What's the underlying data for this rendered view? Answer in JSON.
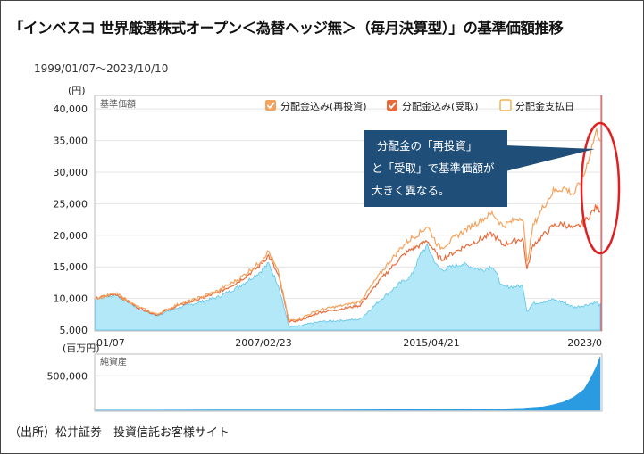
{
  "title": "「インベスコ 世界厳選株式オープン＜為替ヘッジ無＞（毎月決算型）」の基準価額推移",
  "date_range": "1999/01/07〜2023/10/10",
  "source": "（出所）松井証券　投資信託お客様サイト",
  "annotation": {
    "line1": "分配金の「再投資」",
    "line2": "と「受取」で基準価額が",
    "line3": "大きく異なる。"
  },
  "colors": {
    "reinvest": "#f5a25d",
    "received": "#e86a3a",
    "payout_day": "#f2b34a",
    "nav_fill": "#b3e8f9",
    "nav_line": "#5dc5ea",
    "assets_fill": "#2a9be0",
    "callout_bg": "#1f4e79",
    "highlight": "#e02020"
  },
  "chart_data": [
    {
      "type": "line",
      "title": "基準価額",
      "y_unit": "(円)",
      "ylim": [
        5000,
        42000
      ],
      "yticks": [
        "5,000",
        "10,000",
        "15,000",
        "20,000",
        "25,000",
        "30,000",
        "35,000",
        "40,000"
      ],
      "xticks": [
        "01/07",
        "2007/02/23",
        "2015/04/21",
        "2023/0"
      ],
      "legend": [
        {
          "label": "分配金込み(再投資)",
          "style": "check",
          "color": "#f5a25d"
        },
        {
          "label": "分配金込み(受取)",
          "style": "check",
          "color": "#e86a3a"
        },
        {
          "label": "分配金支払日",
          "style": "box",
          "color": "#f2b34a"
        }
      ],
      "x": [
        1999.0,
        2000.0,
        2001.0,
        2002.0,
        2003.0,
        2004.0,
        2005.0,
        2006.0,
        2007.0,
        2007.5,
        2008.0,
        2008.5,
        2009.0,
        2009.5,
        2010.0,
        2011.0,
        2012.0,
        2013.0,
        2014.0,
        2014.5,
        2015.0,
        2015.3,
        2015.8,
        2016.0,
        2017.0,
        2018.0,
        2018.5,
        2019.0,
        2020.0,
        2020.2,
        2020.5,
        2021.0,
        2021.5,
        2022.0,
        2022.5,
        2023.0,
        2023.6,
        2023.8
      ],
      "series": [
        {
          "name": "分配金込み(再投資)",
          "values": [
            10000,
            10800,
            8800,
            7500,
            9000,
            10000,
            11200,
            13000,
            15500,
            17500,
            14000,
            6500,
            6800,
            7500,
            8200,
            8800,
            9500,
            14000,
            18000,
            19500,
            20500,
            21500,
            18500,
            18000,
            20500,
            22500,
            23500,
            21500,
            23000,
            15500,
            21500,
            24500,
            27000,
            27500,
            26500,
            29500,
            36500,
            35500
          ]
        },
        {
          "name": "分配金込み(受取)",
          "values": [
            10000,
            10700,
            8700,
            7400,
            8800,
            9800,
            10900,
            12600,
            15000,
            16800,
            13500,
            6300,
            6500,
            7100,
            7800,
            8300,
            8900,
            13000,
            16500,
            17800,
            18500,
            19200,
            16800,
            16200,
            18000,
            19500,
            20200,
            18500,
            19500,
            14500,
            18500,
            20000,
            21500,
            21800,
            21000,
            22000,
            24500,
            24000
          ]
        },
        {
          "name": "基準価額",
          "values": [
            10000,
            10600,
            8600,
            7300,
            8500,
            9300,
            10200,
            11800,
            14000,
            15500,
            12000,
            5500,
            5600,
            6000,
            6300,
            6500,
            6700,
            9800,
            12500,
            13500,
            17200,
            18300,
            15000,
            14500,
            15500,
            14500,
            15200,
            11800,
            12000,
            8000,
            9200,
            9500,
            9800,
            9400,
            8600,
            8900,
            9400,
            8900
          ]
        }
      ]
    },
    {
      "type": "area",
      "title": "純資産",
      "y_unit": "(百万円)",
      "yticks": [
        "500,000"
      ],
      "ylim": [
        0,
        800000
      ],
      "x": [
        1999,
        2002,
        2005,
        2008,
        2011,
        2014,
        2016,
        2018,
        2019,
        2020,
        2021,
        2021.5,
        2022,
        2022.5,
        2023,
        2023.3,
        2023.6,
        2023.8
      ],
      "values": [
        2000,
        3000,
        5000,
        6000,
        7000,
        9000,
        12000,
        15000,
        20000,
        30000,
        50000,
        80000,
        120000,
        190000,
        300000,
        450000,
        620000,
        780000
      ]
    }
  ]
}
